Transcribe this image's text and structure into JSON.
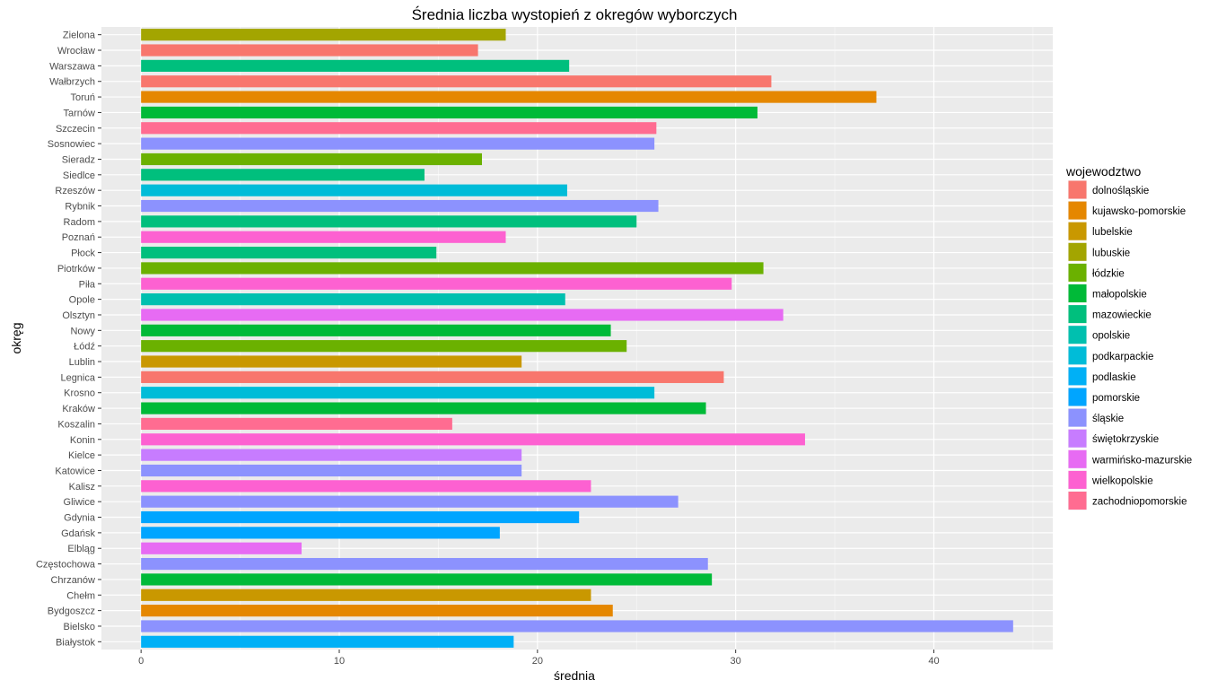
{
  "chart_data": {
    "type": "bar",
    "orientation": "horizontal",
    "title": "Średnia liczba wystopień z okregów wyborczych",
    "xlabel": "średnia",
    "ylabel": "okręg",
    "xlim": [
      -2,
      46
    ],
    "x_ticks": [
      0,
      10,
      20,
      30,
      40
    ],
    "grid": true,
    "legend_position": "right",
    "legend": {
      "title": "wojewodztwo",
      "entries": [
        {
          "name": "dolnośląskie",
          "color": "#F8766D"
        },
        {
          "name": "kujawsko-pomorskie",
          "color": "#E58700"
        },
        {
          "name": "lubelskie",
          "color": "#C99800"
        },
        {
          "name": "lubuskie",
          "color": "#A3A500"
        },
        {
          "name": "łódzkie",
          "color": "#6BB100"
        },
        {
          "name": "małopolskie",
          "color": "#00BA38"
        },
        {
          "name": "mazowieckie",
          "color": "#00BF7D"
        },
        {
          "name": "opolskie",
          "color": "#00C0AF"
        },
        {
          "name": "podkarpackie",
          "color": "#00BCD8"
        },
        {
          "name": "podlaskie",
          "color": "#00B0F6"
        },
        {
          "name": "pomorskie",
          "color": "#00A5FF"
        },
        {
          "name": "śląskie",
          "color": "#8C92FE"
        },
        {
          "name": "świętokrzyskie",
          "color": "#C77CFF"
        },
        {
          "name": "warmińsko-mazurskie",
          "color": "#E76BF3"
        },
        {
          "name": "wielkopolskie",
          "color": "#FD61D1"
        },
        {
          "name": "zachodniopomorskie",
          "color": "#FF6C91"
        }
      ]
    },
    "categories": [
      "Białystok",
      "Bielsko",
      "Bydgoszcz",
      "Chełm",
      "Chrzanów",
      "Częstochowa",
      "Elbląg",
      "Gdańsk",
      "Gdynia",
      "Gliwice",
      "Kalisz",
      "Katowice",
      "Kielce",
      "Konin",
      "Koszalin",
      "Kraków",
      "Krosno",
      "Legnica",
      "Lublin",
      "Łódź",
      "Nowy",
      "Olsztyn",
      "Opole",
      "Piła",
      "Piotrków",
      "Płock",
      "Poznań",
      "Radom",
      "Rybnik",
      "Rzeszów",
      "Siedlce",
      "Sieradz",
      "Sosnowiec",
      "Szczecin",
      "Tarnów",
      "Toruń",
      "Wałbrzych",
      "Warszawa",
      "Wrocław",
      "Zielona"
    ],
    "values": [
      18.8,
      44.0,
      23.8,
      22.7,
      28.8,
      28.6,
      8.1,
      18.1,
      22.1,
      27.1,
      22.7,
      19.2,
      19.2,
      33.5,
      15.7,
      28.5,
      25.9,
      29.4,
      19.2,
      24.5,
      23.7,
      32.4,
      21.4,
      29.8,
      31.4,
      14.9,
      18.4,
      25.0,
      26.1,
      21.5,
      14.3,
      17.2,
      25.9,
      26.0,
      31.1,
      37.1,
      31.8,
      21.6,
      17.0,
      18.4
    ],
    "groups": [
      "podlaskie",
      "śląskie",
      "kujawsko-pomorskie",
      "lubelskie",
      "małopolskie",
      "śląskie",
      "warmińsko-mazurskie",
      "pomorskie",
      "pomorskie",
      "śląskie",
      "wielkopolskie",
      "śląskie",
      "świętokrzyskie",
      "wielkopolskie",
      "zachodniopomorskie",
      "małopolskie",
      "podkarpackie",
      "dolnośląskie",
      "lubelskie",
      "łódzkie",
      "małopolskie",
      "warmińsko-mazurskie",
      "opolskie",
      "wielkopolskie",
      "łódzkie",
      "mazowieckie",
      "wielkopolskie",
      "mazowieckie",
      "śląskie",
      "podkarpackie",
      "mazowieckie",
      "łódzkie",
      "śląskie",
      "zachodniopomorskie",
      "małopolskie",
      "kujawsko-pomorskie",
      "dolnośląskie",
      "mazowieckie",
      "dolnośląskie",
      "lubuskie"
    ]
  }
}
